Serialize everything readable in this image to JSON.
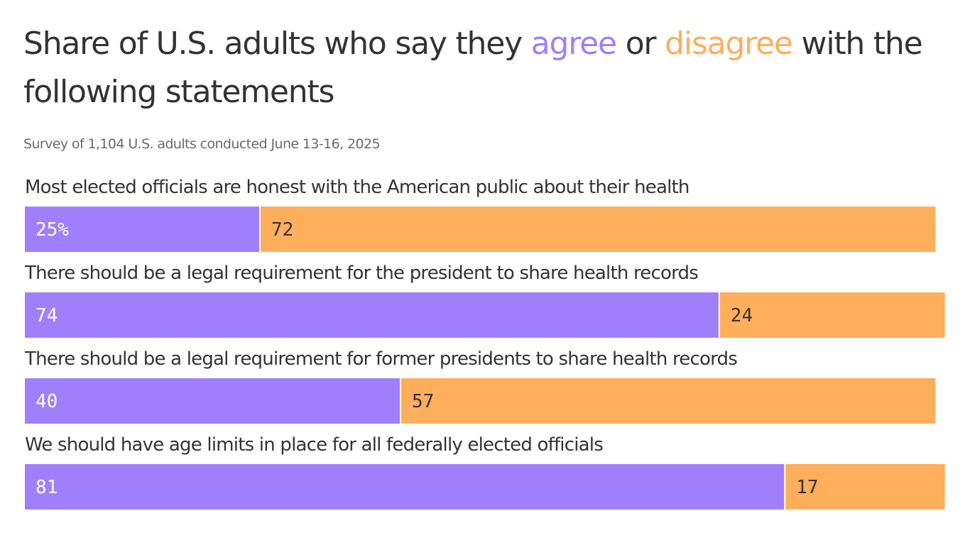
{
  "title": {
    "part1": "Share of U.S. adults who say they ",
    "agree": "agree",
    "part2": " or ",
    "disagree": "disagree",
    "part3": " with the following statements"
  },
  "subtitle": "Survey of 1,104 U.S. adults conducted June 13-16, 2025",
  "colors": {
    "agree": "#a07ffc",
    "disagree": "#ffae5c",
    "text": "#333333"
  },
  "chart_data": {
    "type": "bar",
    "orientation": "horizontal-stacked",
    "categories": [
      "Most elected officials are honest with the American public about their health",
      "There should be a legal requirement for the president to share health records",
      "There should be a legal requirement for former presidents to share health records",
      "We should have age limits in place for all federally elected officials"
    ],
    "series": [
      {
        "name": "agree",
        "values": [
          25,
          74,
          40,
          81
        ]
      },
      {
        "name": "disagree",
        "values": [
          72,
          24,
          57,
          17
        ]
      }
    ],
    "value_labels": [
      [
        "25%",
        "72"
      ],
      [
        "74",
        "24"
      ],
      [
        "40",
        "57"
      ],
      [
        "81",
        "17"
      ]
    ],
    "xlim": [
      0,
      100
    ]
  }
}
